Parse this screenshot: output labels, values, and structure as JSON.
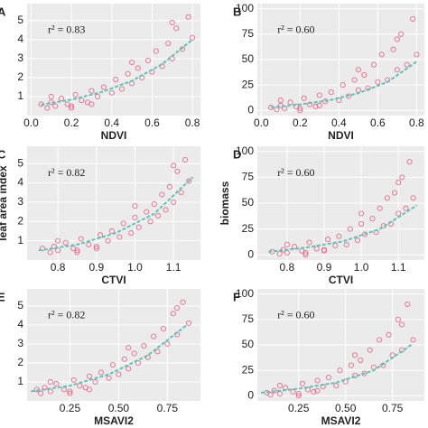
{
  "chart_data": [
    {
      "type": "scatter",
      "panel_label": "A",
      "annotation": "r² = 0.83",
      "x_label": "NDVI",
      "xlim": [
        -0.02,
        0.84
      ],
      "xticks": [
        {
          "value": 0,
          "label": "0.0"
        },
        0.2,
        0.4,
        0.6,
        0.8
      ],
      "ylim": [
        0,
        5.9
      ],
      "yticks": [
        1,
        2,
        3,
        4,
        5
      ],
      "grid": true,
      "series": [
        {
          "color": "#e8567c",
          "x": [
            0.05,
            0.08,
            0.1,
            0.12,
            0.15,
            0.18,
            0.2,
            0.22,
            0.25,
            0.28,
            0.3,
            0.33,
            0.36,
            0.4,
            0.42,
            0.45,
            0.48,
            0.5,
            0.53,
            0.55,
            0.58,
            0.6,
            0.62,
            0.65,
            0.68,
            0.7,
            0.72,
            0.75,
            0.78,
            0.8,
            0.1,
            0.2,
            0.3,
            0.5,
            0.7
          ],
          "values": [
            0.6,
            0.4,
            0.7,
            0.5,
            0.9,
            0.6,
            0.5,
            1.1,
            0.8,
            0.7,
            1.3,
            1.0,
            1.5,
            1.2,
            1.9,
            1.4,
            2.2,
            1.7,
            2.5,
            2.0,
            2.9,
            2.3,
            3.4,
            2.6,
            3.8,
            3.0,
            4.6,
            3.5,
            5.2,
            4.1,
            1.0,
            0.4,
            0.6,
            2.8,
            4.9
          ]
        }
      ],
      "fit_line": {
        "color": "#5fc4b4",
        "x": [
          0.05,
          0.2,
          0.35,
          0.5,
          0.65,
          0.8
        ],
        "values": [
          0.57,
          0.84,
          1.24,
          1.83,
          2.71,
          4.0
        ]
      }
    },
    {
      "type": "scatter",
      "panel_label": "B",
      "annotation": "r² = 0.60",
      "x_label": "NDVI",
      "xlim": [
        -0.02,
        0.84
      ],
      "xticks": [
        {
          "value": 0,
          "label": "0.0"
        },
        0.2,
        0.4,
        0.6,
        0.8
      ],
      "ylim": [
        -5,
        105
      ],
      "yticks": [
        0,
        25,
        50,
        75,
        100
      ],
      "grid": true,
      "series": [
        {
          "color": "#e8567c",
          "x": [
            0.05,
            0.08,
            0.1,
            0.12,
            0.15,
            0.18,
            0.2,
            0.22,
            0.25,
            0.28,
            0.3,
            0.33,
            0.36,
            0.4,
            0.42,
            0.45,
            0.48,
            0.5,
            0.53,
            0.55,
            0.58,
            0.6,
            0.62,
            0.65,
            0.68,
            0.7,
            0.72,
            0.75,
            0.78,
            0.8,
            0.1,
            0.2,
            0.3,
            0.5,
            0.7
          ],
          "values": [
            3,
            1,
            5,
            2,
            8,
            4,
            2,
            12,
            6,
            4,
            15,
            9,
            18,
            10,
            25,
            14,
            30,
            20,
            35,
            22,
            45,
            28,
            55,
            30,
            60,
            40,
            75,
            45,
            90,
            55,
            10,
            0,
            5,
            40,
            70
          ]
        }
      ],
      "fit_line": {
        "color": "#5fc4b4",
        "x": [
          0.05,
          0.2,
          0.35,
          0.5,
          0.65,
          0.8
        ],
        "values": [
          3,
          6,
          10,
          17,
          28,
          48
        ]
      }
    },
    {
      "type": "scatter",
      "panel_label": "C",
      "annotation": "r² = 0.82",
      "x_label": "CTVI",
      "y_label": "leaf area index",
      "xlim": [
        0.72,
        1.17
      ],
      "xticks": [
        0.8,
        0.9,
        {
          "value": 1,
          "label": "1.0"
        },
        1.1
      ],
      "ylim": [
        0,
        5.9
      ],
      "yticks": [
        1,
        2,
        3,
        4,
        5
      ],
      "grid": true,
      "series": [
        {
          "color": "#e8567c",
          "x": [
            0.76,
            0.78,
            0.79,
            0.8,
            0.82,
            0.84,
            0.85,
            0.86,
            0.88,
            0.9,
            0.91,
            0.93,
            0.94,
            0.96,
            0.97,
            0.99,
            1.0,
            1.01,
            1.03,
            1.04,
            1.05,
            1.06,
            1.07,
            1.08,
            1.09,
            1.1,
            1.11,
            1.12,
            1.13,
            1.14,
            0.8,
            0.85,
            0.9,
            1.0,
            1.1
          ],
          "values": [
            0.6,
            0.4,
            0.7,
            0.5,
            0.9,
            0.6,
            0.5,
            1.1,
            0.8,
            0.7,
            1.3,
            1.0,
            1.5,
            1.2,
            1.9,
            1.4,
            2.2,
            1.7,
            2.5,
            2.0,
            2.9,
            2.3,
            3.4,
            2.6,
            3.8,
            3.0,
            4.6,
            3.5,
            5.2,
            4.1,
            1.0,
            0.4,
            0.6,
            2.8,
            4.9
          ]
        }
      ],
      "fit_line": {
        "color": "#5fc4b4",
        "x": [
          0.75,
          0.85,
          0.95,
          1.05,
          1.15
        ],
        "values": [
          0.5,
          0.8,
          1.4,
          2.4,
          4.3
        ]
      }
    },
    {
      "type": "scatter",
      "panel_label": "D",
      "annotation": "r² = 0.60",
      "x_label": "CTVI",
      "y_label": "biomass",
      "xlim": [
        0.72,
        1.17
      ],
      "xticks": [
        0.8,
        0.9,
        {
          "value": 1,
          "label": "1.0"
        },
        1.1
      ],
      "ylim": [
        -5,
        105
      ],
      "yticks": [
        0,
        25,
        50,
        75,
        100
      ],
      "grid": true,
      "series": [
        {
          "color": "#e8567c",
          "x": [
            0.76,
            0.78,
            0.79,
            0.8,
            0.82,
            0.84,
            0.85,
            0.86,
            0.88,
            0.9,
            0.91,
            0.93,
            0.94,
            0.96,
            0.97,
            0.99,
            1.0,
            1.01,
            1.03,
            1.04,
            1.05,
            1.06,
            1.07,
            1.08,
            1.09,
            1.1,
            1.11,
            1.12,
            1.13,
            1.14,
            0.8,
            0.85,
            0.9,
            1.0,
            1.1
          ],
          "values": [
            3,
            1,
            5,
            2,
            8,
            4,
            2,
            12,
            6,
            4,
            15,
            9,
            18,
            10,
            25,
            14,
            30,
            20,
            35,
            22,
            45,
            28,
            55,
            30,
            60,
            40,
            75,
            45,
            90,
            55,
            10,
            0,
            5,
            40,
            70
          ]
        }
      ],
      "fit_line": {
        "color": "#5fc4b4",
        "x": [
          0.75,
          0.85,
          0.95,
          1.05,
          1.15
        ],
        "values": [
          3,
          7,
          13,
          25,
          48
        ]
      }
    },
    {
      "type": "scatter",
      "panel_label": "E",
      "annotation": "r² = 0.82",
      "x_label": "MSAVI2",
      "xlim": [
        0.03,
        0.92
      ],
      "xticks": [
        0.25,
        {
          "value": 0.5,
          "label": "0.50"
        },
        0.75
      ],
      "ylim": [
        0,
        5.9
      ],
      "yticks": [
        1,
        2,
        3,
        4,
        5
      ],
      "grid": true,
      "series": [
        {
          "color": "#e8567c",
          "x": [
            0.08,
            0.1,
            0.12,
            0.15,
            0.18,
            0.22,
            0.25,
            0.27,
            0.3,
            0.33,
            0.35,
            0.38,
            0.41,
            0.45,
            0.47,
            0.5,
            0.53,
            0.55,
            0.58,
            0.6,
            0.63,
            0.65,
            0.68,
            0.7,
            0.73,
            0.75,
            0.78,
            0.8,
            0.83,
            0.86,
            0.15,
            0.25,
            0.35,
            0.55,
            0.8
          ],
          "values": [
            0.6,
            0.4,
            0.7,
            0.5,
            0.9,
            0.6,
            0.5,
            1.1,
            0.8,
            0.7,
            1.3,
            1.0,
            1.5,
            1.2,
            1.9,
            1.4,
            2.2,
            1.7,
            2.5,
            2.0,
            2.9,
            2.3,
            3.4,
            2.6,
            3.8,
            3.0,
            4.6,
            3.5,
            5.2,
            4.1,
            1.0,
            0.4,
            0.6,
            2.8,
            4.9
          ]
        }
      ],
      "fit_line": {
        "color": "#5fc4b4",
        "x": [
          0.05,
          0.25,
          0.45,
          0.65,
          0.85
        ],
        "values": [
          0.5,
          0.8,
          1.4,
          2.4,
          4.0
        ]
      }
    },
    {
      "type": "scatter",
      "panel_label": "F",
      "annotation": "r² = 0.60",
      "x_label": "MSAVI2",
      "xlim": [
        0.03,
        0.92
      ],
      "xticks": [
        0.25,
        {
          "value": 0.5,
          "label": "0.50"
        },
        0.75
      ],
      "ylim": [
        -5,
        105
      ],
      "yticks": [
        0,
        25,
        50,
        75,
        100
      ],
      "grid": true,
      "series": [
        {
          "color": "#e8567c",
          "x": [
            0.08,
            0.1,
            0.12,
            0.15,
            0.18,
            0.22,
            0.25,
            0.27,
            0.3,
            0.33,
            0.35,
            0.38,
            0.41,
            0.45,
            0.47,
            0.5,
            0.53,
            0.55,
            0.58,
            0.6,
            0.63,
            0.65,
            0.68,
            0.7,
            0.73,
            0.75,
            0.78,
            0.8,
            0.83,
            0.86,
            0.15,
            0.25,
            0.35,
            0.55,
            0.8
          ],
          "values": [
            3,
            1,
            5,
            2,
            8,
            4,
            2,
            12,
            6,
            4,
            15,
            9,
            18,
            10,
            25,
            14,
            30,
            20,
            35,
            22,
            45,
            28,
            55,
            30,
            60,
            40,
            75,
            45,
            90,
            55,
            10,
            0,
            5,
            40,
            70
          ]
        }
      ],
      "fit_line": {
        "color": "#5fc4b4",
        "x": [
          0.05,
          0.25,
          0.45,
          0.65,
          0.85
        ],
        "values": [
          3,
          7,
          13,
          25,
          50
        ]
      }
    }
  ]
}
